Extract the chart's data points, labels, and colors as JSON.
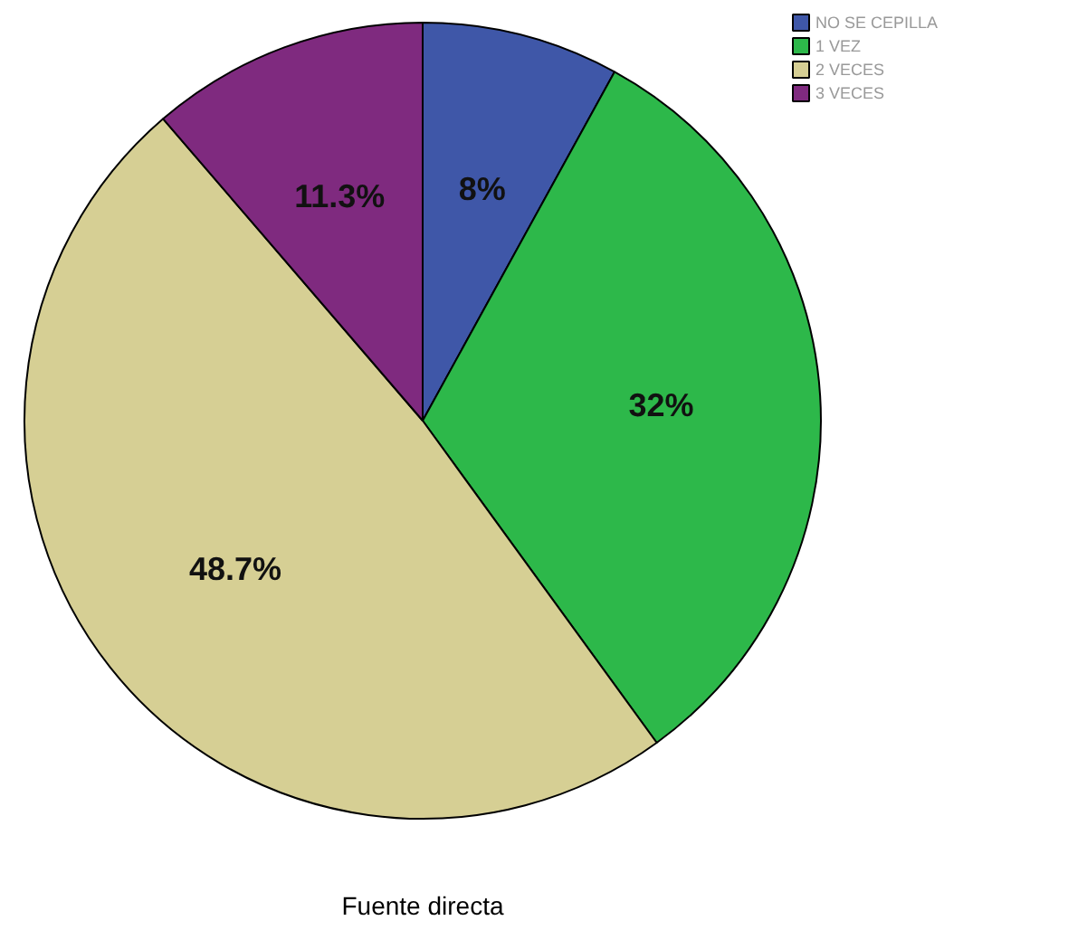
{
  "chart_data": {
    "type": "pie",
    "categories": [
      "NO SE CEPILLA",
      "1 VEZ",
      "2 VECES",
      "3 VECES"
    ],
    "values": [
      8,
      32,
      48.7,
      11.3
    ],
    "colors": [
      "#3f57a8",
      "#2db84a",
      "#d6cf94",
      "#7f2a7f"
    ],
    "value_labels": [
      "8%",
      "32%",
      "48.7%",
      "11.3%"
    ],
    "legend": "top right",
    "annotations": [
      "Fuente directa"
    ]
  }
}
